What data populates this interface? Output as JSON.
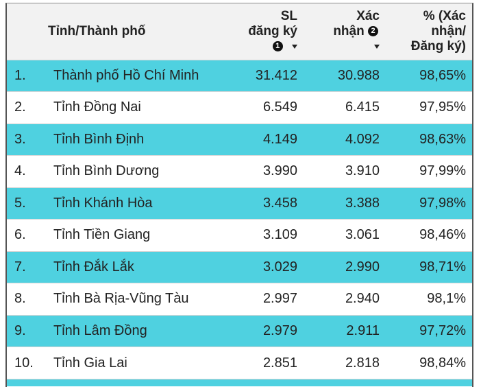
{
  "header": {
    "col_name": "Tỉnh/Thành phố",
    "col_registered_line1": "SL",
    "col_registered_line2": "đăng ký",
    "col_registered_badge": "1",
    "col_confirmed_line1": "Xác",
    "col_confirmed_line2": "nhận",
    "col_confirmed_badge": "2",
    "col_pct_line1": "% (Xác nhận/",
    "col_pct_line2": "Đăng ký)"
  },
  "rows": [
    {
      "rank": "1.",
      "name": "Thành phố Hồ Chí Minh",
      "registered": "31.412",
      "confirmed": "30.988",
      "pct": "98,65%"
    },
    {
      "rank": "2.",
      "name": "Tỉnh Đồng Nai",
      "registered": "6.549",
      "confirmed": "6.415",
      "pct": "97,95%"
    },
    {
      "rank": "3.",
      "name": "Tỉnh Bình Định",
      "registered": "4.149",
      "confirmed": "4.092",
      "pct": "98,63%"
    },
    {
      "rank": "4.",
      "name": "Tỉnh Bình Dương",
      "registered": "3.990",
      "confirmed": "3.910",
      "pct": "97,99%"
    },
    {
      "rank": "5.",
      "name": "Tỉnh Khánh Hòa",
      "registered": "3.458",
      "confirmed": "3.388",
      "pct": "97,98%"
    },
    {
      "rank": "6.",
      "name": "Tỉnh Tiền Giang",
      "registered": "3.109",
      "confirmed": "3.061",
      "pct": "98,46%"
    },
    {
      "rank": "7.",
      "name": "Tỉnh Đắk Lắk",
      "registered": "3.029",
      "confirmed": "2.990",
      "pct": "98,71%"
    },
    {
      "rank": "8.",
      "name": "Tỉnh Bà Rịa-Vũng Tàu",
      "registered": "2.997",
      "confirmed": "2.940",
      "pct": "98,1%"
    },
    {
      "rank": "9.",
      "name": "Tỉnh Lâm Đồng",
      "registered": "2.979",
      "confirmed": "2.911",
      "pct": "97,72%"
    },
    {
      "rank": "10.",
      "name": "Tỉnh Gia Lai",
      "registered": "2.851",
      "confirmed": "2.818",
      "pct": "98,84%"
    }
  ],
  "colors": {
    "highlight_row": "#4fd1e0",
    "header_bg": "#f2f2f2"
  }
}
